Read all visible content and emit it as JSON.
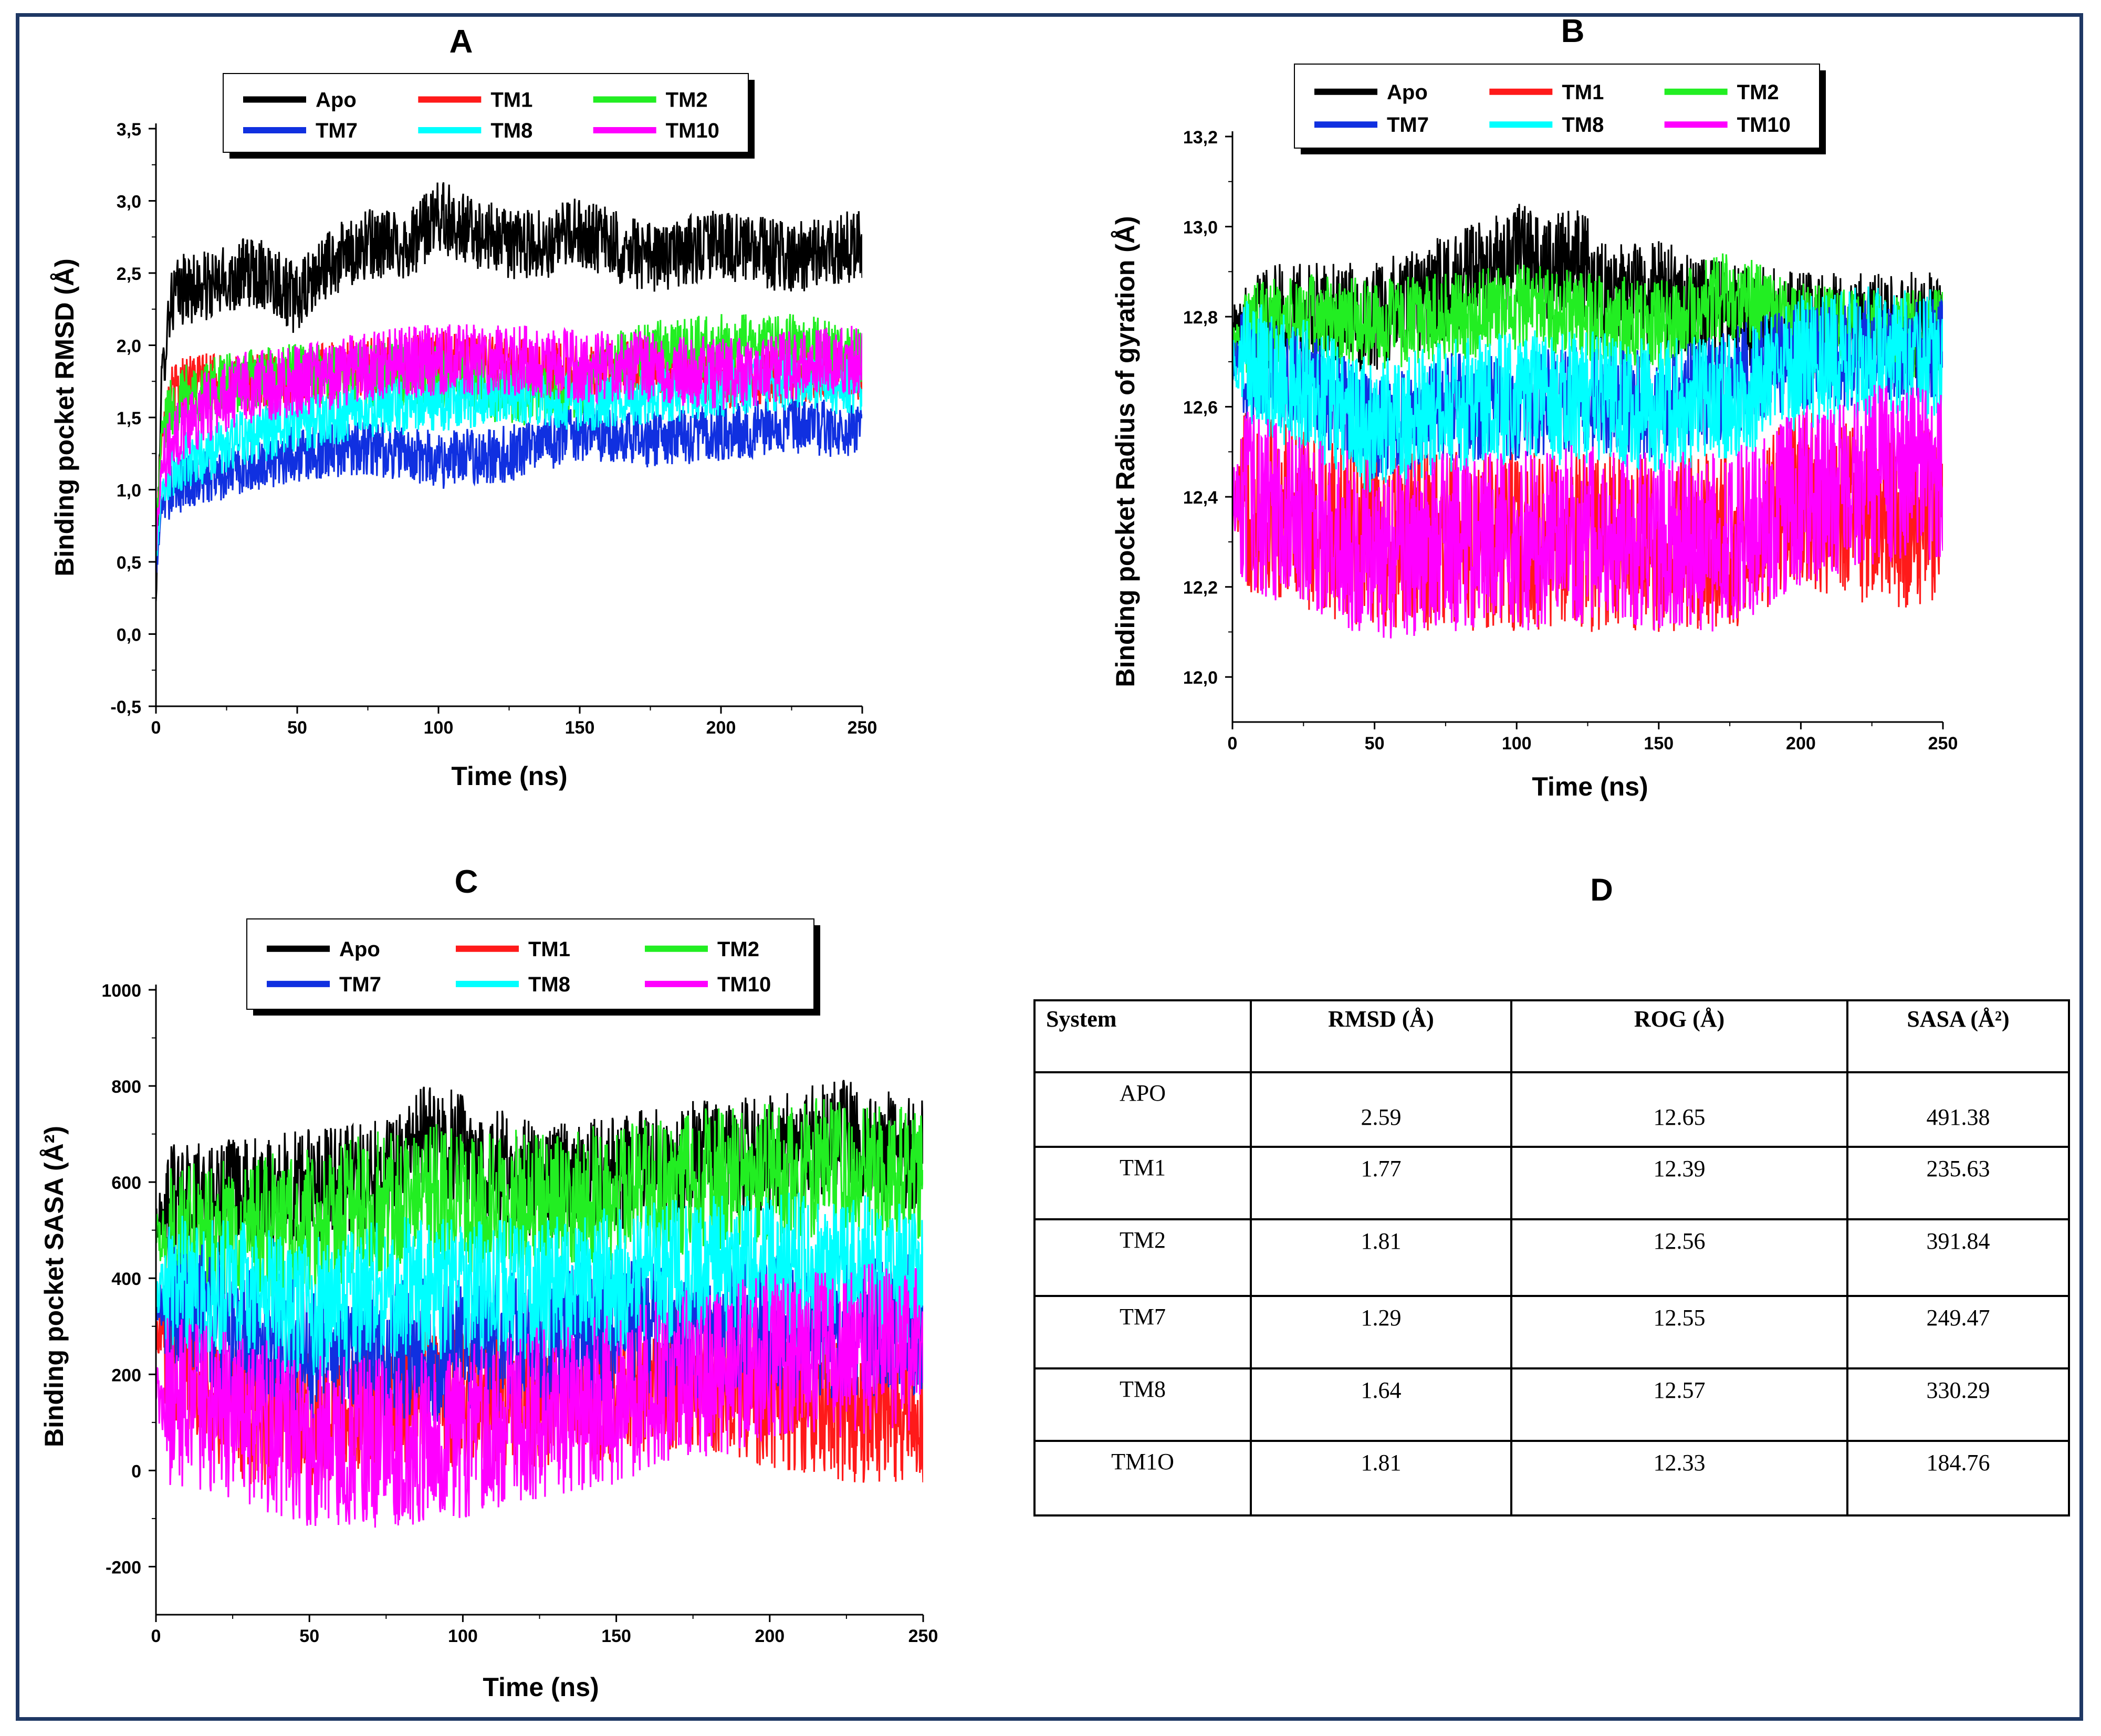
{
  "panels": [
    {
      "letter": "A",
      "ylabel": "Binding pocket RMSD (Å)",
      "xlabel": "Time (ns)",
      "yticks": [
        "-0,5",
        "0,0",
        "0,5",
        "1,0",
        "1,5",
        "2,0",
        "2,5",
        "3,0",
        "3,5"
      ],
      "xticks": [
        "0",
        "50",
        "100",
        "150",
        "200",
        "250"
      ]
    },
    {
      "letter": "B",
      "ylabel": "Binding pocket Radius of gyration (Å)",
      "xlabel": "Time (ns)",
      "yticks": [
        "12,0",
        "12,2",
        "12,4",
        "12,6",
        "12,8",
        "13,0",
        "13,2"
      ],
      "xticks": [
        "0",
        "50",
        "100",
        "150",
        "200",
        "250"
      ]
    },
    {
      "letter": "C",
      "ylabel": "Binding pocket SASA (Å²)",
      "xlabel": "Time (ns)",
      "yticks": [
        "-200",
        "0",
        "200",
        "400",
        "600",
        "800",
        "1000"
      ],
      "xticks": [
        "0",
        "50",
        "100",
        "150",
        "200",
        "250"
      ]
    }
  ],
  "legend": [
    "Apo",
    "TM1",
    "TM2",
    "TM7",
    "TM8",
    "TM10"
  ],
  "colors": {
    "Apo": "#000000",
    "TM1": "#ff1a1a",
    "TM2": "#22ee22",
    "TM7": "#1030e0",
    "TM8": "#00ffff",
    "TM10": "#ff00ff",
    "frame": "#1f3864"
  },
  "chart_data": [
    {
      "type": "line",
      "title": "A",
      "xlabel": "Time (ns)",
      "ylabel": "Binding pocket RMSD (Å)",
      "xlim": [
        0,
        250
      ],
      "ylim": [
        -0.5,
        3.5
      ],
      "series": [
        {
          "name": "Apo",
          "x": [
            0,
            2,
            5,
            10,
            20,
            30,
            40,
            50,
            60,
            75,
            90,
            100,
            110,
            125,
            140,
            150,
            160,
            175,
            200,
            225,
            250
          ],
          "y": [
            0.2,
            1.8,
            2.3,
            2.4,
            2.4,
            2.5,
            2.5,
            2.3,
            2.55,
            2.7,
            2.7,
            2.9,
            2.8,
            2.7,
            2.7,
            2.8,
            2.7,
            2.6,
            2.7,
            2.6,
            2.7
          ],
          "noise": 0.25
        },
        {
          "name": "TM1",
          "x": [
            0,
            2,
            5,
            10,
            20,
            30,
            40,
            50,
            75,
            100,
            125,
            150,
            175,
            200,
            225,
            250
          ],
          "y": [
            0.6,
            1.4,
            1.65,
            1.75,
            1.75,
            1.72,
            1.75,
            1.8,
            1.85,
            1.9,
            1.85,
            1.8,
            1.85,
            1.75,
            1.8,
            1.8
          ],
          "noise": 0.2
        },
        {
          "name": "TM2",
          "x": [
            0,
            2,
            5,
            10,
            20,
            30,
            50,
            75,
            100,
            125,
            150,
            165,
            175,
            200,
            225,
            250
          ],
          "y": [
            0.6,
            1.4,
            1.55,
            1.65,
            1.7,
            1.75,
            1.8,
            1.8,
            1.8,
            1.65,
            1.7,
            1.9,
            1.95,
            2.0,
            2.0,
            1.95
          ],
          "noise": 0.22
        },
        {
          "name": "TM7",
          "x": [
            0,
            2,
            5,
            10,
            20,
            30,
            40,
            50,
            75,
            100,
            125,
            150,
            175,
            200,
            225,
            250
          ],
          "y": [
            0.4,
            0.9,
            1.0,
            1.05,
            1.1,
            1.15,
            1.2,
            1.25,
            1.3,
            1.2,
            1.25,
            1.4,
            1.35,
            1.4,
            1.45,
            1.4
          ],
          "noise": 0.2
        },
        {
          "name": "TM8",
          "x": [
            0,
            2,
            5,
            10,
            20,
            30,
            40,
            50,
            75,
            100,
            125,
            150,
            175,
            200,
            225,
            250
          ],
          "y": [
            0.5,
            1.0,
            1.1,
            1.2,
            1.25,
            1.35,
            1.4,
            1.45,
            1.55,
            1.6,
            1.65,
            1.6,
            1.65,
            1.7,
            1.75,
            1.7
          ],
          "noise": 0.2
        },
        {
          "name": "TM10",
          "x": [
            0,
            2,
            5,
            10,
            20,
            30,
            50,
            75,
            100,
            125,
            150,
            175,
            200,
            225,
            250
          ],
          "y": [
            0.6,
            1.2,
            1.3,
            1.45,
            1.6,
            1.7,
            1.75,
            1.85,
            1.9,
            1.9,
            1.85,
            1.85,
            1.8,
            1.85,
            1.9
          ],
          "noise": 0.25
        }
      ]
    },
    {
      "type": "line",
      "title": "B",
      "xlabel": "Time (ns)",
      "ylabel": "Binding pocket Radius of gyration (Å)",
      "xlim": [
        0,
        250
      ],
      "ylim": [
        11.9,
        13.2
      ],
      "series": [
        {
          "name": "Apo",
          "x": [
            0,
            10,
            30,
            50,
            70,
            90,
            100,
            110,
            120,
            130,
            150,
            175,
            200,
            225,
            250
          ],
          "y": [
            12.78,
            12.8,
            12.8,
            12.8,
            12.85,
            12.9,
            12.95,
            12.9,
            12.95,
            12.85,
            12.85,
            12.8,
            12.78,
            12.78,
            12.78
          ],
          "noise": 0.12
        },
        {
          "name": "TM1",
          "x": [
            0,
            25,
            50,
            75,
            100,
            125,
            150,
            175,
            200,
            225,
            250
          ],
          "y": [
            12.4,
            12.35,
            12.3,
            12.3,
            12.3,
            12.3,
            12.3,
            12.3,
            12.4,
            12.35,
            12.35
          ],
          "noise": 0.2
        },
        {
          "name": "TM2",
          "x": [
            0,
            10,
            30,
            50,
            75,
            100,
            125,
            150,
            175,
            200,
            225,
            250
          ],
          "y": [
            12.75,
            12.78,
            12.8,
            12.78,
            12.8,
            12.82,
            12.8,
            12.78,
            12.85,
            12.78,
            12.76,
            12.76
          ],
          "noise": 0.1
        },
        {
          "name": "TM7",
          "x": [
            0,
            25,
            50,
            75,
            100,
            125,
            150,
            175,
            190,
            210,
            250
          ],
          "y": [
            12.7,
            12.65,
            12.55,
            12.6,
            12.6,
            12.62,
            12.6,
            12.65,
            12.7,
            12.72,
            12.72
          ],
          "noise": 0.12
        },
        {
          "name": "TM8",
          "x": [
            0,
            25,
            50,
            75,
            100,
            125,
            150,
            175,
            200,
            225,
            250
          ],
          "y": [
            12.7,
            12.65,
            12.55,
            12.6,
            12.62,
            12.62,
            12.6,
            12.62,
            12.7,
            12.72,
            12.72
          ],
          "noise": 0.15
        },
        {
          "name": "TM10",
          "x": [
            0,
            25,
            50,
            75,
            100,
            125,
            150,
            175,
            200,
            225,
            250
          ],
          "y": [
            12.4,
            12.35,
            12.28,
            12.3,
            12.3,
            12.32,
            12.3,
            12.3,
            12.4,
            12.45,
            12.45
          ],
          "noise": 0.2
        }
      ]
    },
    {
      "type": "line",
      "title": "C",
      "xlabel": "Time (ns)",
      "ylabel": "Binding pocket SASA (Å²)",
      "xlim": [
        0,
        250
      ],
      "ylim": [
        -300,
        1000
      ],
      "series": [
        {
          "name": "Apo",
          "x": [
            0,
            5,
            25,
            50,
            75,
            90,
            100,
            125,
            150,
            175,
            200,
            225,
            250
          ],
          "y": [
            520,
            560,
            570,
            590,
            620,
            700,
            660,
            600,
            620,
            650,
            660,
            700,
            650
          ],
          "noise": 120
        },
        {
          "name": "TM1",
          "x": [
            0,
            25,
            50,
            75,
            100,
            125,
            150,
            175,
            200,
            225,
            250
          ],
          "y": [
            300,
            120,
            100,
            150,
            150,
            150,
            170,
            200,
            150,
            120,
            120
          ],
          "noise": 150
        },
        {
          "name": "TM2",
          "x": [
            0,
            25,
            50,
            75,
            90,
            100,
            125,
            150,
            175,
            200,
            225,
            250
          ],
          "y": [
            480,
            500,
            520,
            560,
            580,
            560,
            560,
            570,
            600,
            620,
            630,
            600
          ],
          "noise": 150
        },
        {
          "name": "TM7",
          "x": [
            0,
            25,
            50,
            75,
            100,
            125,
            150,
            175,
            200,
            225,
            250
          ],
          "y": [
            350,
            300,
            250,
            250,
            250,
            270,
            300,
            300,
            300,
            300,
            300
          ],
          "noise": 150
        },
        {
          "name": "TM8",
          "x": [
            0,
            25,
            50,
            75,
            100,
            125,
            150,
            175,
            200,
            225,
            250
          ],
          "y": [
            380,
            380,
            330,
            380,
            380,
            380,
            400,
            420,
            430,
            430,
            400
          ],
          "noise": 150
        },
        {
          "name": "TM10",
          "x": [
            0,
            25,
            50,
            75,
            100,
            125,
            150,
            175,
            200,
            225,
            250
          ],
          "y": [
            150,
            120,
            60,
            60,
            80,
            120,
            150,
            200,
            230,
            250,
            260
          ],
          "noise": 180
        }
      ]
    },
    {
      "type": "table",
      "title": "D",
      "columns": [
        "System",
        "RMSD (Å)",
        "ROG (Å)",
        "SASA (Å²)"
      ],
      "rows": [
        [
          "APO",
          "2.59",
          "12.65",
          "491.38"
        ],
        [
          "TM1",
          "1.77",
          "12.39",
          "235.63"
        ],
        [
          "TM2",
          "1.81",
          "12.56",
          "391.84"
        ],
        [
          "TM7",
          "1.29",
          "12.55",
          "249.47"
        ],
        [
          "TM8",
          "1.64",
          "12.57",
          "330.29"
        ],
        [
          "TM1O",
          "1.81",
          "12.33",
          "184.76"
        ]
      ]
    }
  ]
}
